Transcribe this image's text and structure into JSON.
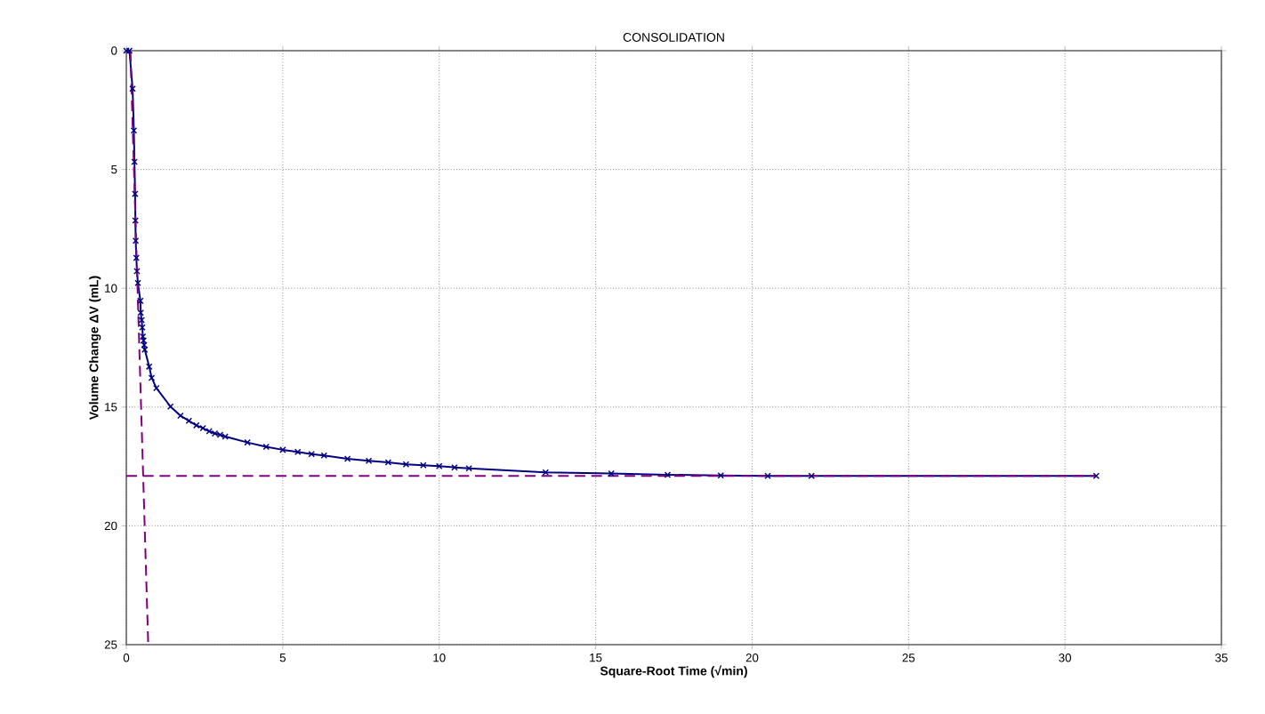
{
  "chart_data": {
    "type": "line",
    "title": "CONSOLIDATION",
    "xlabel": "Square-Root Time (√min)",
    "ylabel": "Volume Change ΔV (mL)",
    "xlim": [
      0,
      35
    ],
    "ylim": [
      25,
      0
    ],
    "xticks": [
      0,
      5,
      10,
      15,
      20,
      25,
      30,
      35
    ],
    "yticks": [
      0,
      5,
      10,
      15,
      20,
      25
    ],
    "grid": true,
    "series": [
      {
        "color": "#000080",
        "marker": "cross",
        "line_style": "solid",
        "x": [
          0,
          0.1,
          0.2,
          0.24,
          0.26,
          0.28,
          0.29,
          0.3,
          0.32,
          0.34,
          0.37,
          0.45,
          0.46,
          0.49,
          0.51,
          0.53,
          0.55,
          0.57,
          0.59,
          0.73,
          0.81,
          0.96,
          1.41,
          1.73,
          2.0,
          2.24,
          2.45,
          2.65,
          2.83,
          3.0,
          3.16,
          3.87,
          4.47,
          5.0,
          5.48,
          5.92,
          6.32,
          7.07,
          7.75,
          8.37,
          8.94,
          9.49,
          10.0,
          10.49,
          10.95,
          13.4,
          15.5,
          17.3,
          19.0,
          20.5,
          21.9,
          31.0
        ],
        "values": [
          0,
          0,
          1.6,
          3.36,
          4.68,
          6.03,
          7.15,
          8.0,
          8.72,
          9.28,
          9.78,
          10.53,
          11.03,
          11.34,
          11.65,
          12.03,
          12.2,
          12.39,
          12.58,
          13.3,
          13.77,
          14.2,
          14.98,
          15.36,
          15.58,
          15.77,
          15.89,
          16.02,
          16.11,
          16.17,
          16.24,
          16.49,
          16.67,
          16.8,
          16.89,
          16.98,
          17.04,
          17.18,
          17.26,
          17.33,
          17.41,
          17.45,
          17.49,
          17.54,
          17.58,
          17.75,
          17.8,
          17.85,
          17.88,
          17.9,
          17.9,
          17.9
        ]
      },
      {
        "color": "#800080",
        "marker": "none",
        "line_style": "dashed",
        "x": [
          0.13,
          0.7
        ],
        "values": [
          0,
          25
        ]
      },
      {
        "color": "#800080",
        "marker": "none",
        "line_style": "dashed",
        "x": [
          0,
          31.0
        ],
        "values": [
          17.9,
          17.9
        ]
      }
    ]
  }
}
